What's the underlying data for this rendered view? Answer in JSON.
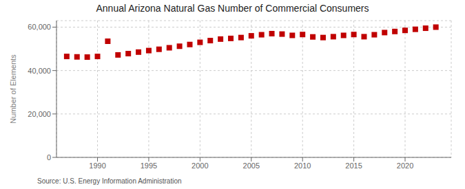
{
  "chart_data": {
    "type": "scatter",
    "title": "Annual Arizona Natural Gas Number of Commercial Consumers",
    "ylabel": "Number of Elements",
    "annotations": [
      "Source: U.S. Energy Information Administration"
    ],
    "x": [
      1987,
      1988,
      1989,
      1990,
      1991,
      1992,
      1993,
      1994,
      1995,
      1996,
      1997,
      1998,
      1999,
      2000,
      2001,
      2002,
      2003,
      2004,
      2005,
      2006,
      2007,
      2008,
      2009,
      2010,
      2011,
      2012,
      2013,
      2014,
      2015,
      2016,
      2017,
      2018,
      2019,
      2020,
      2021,
      2022,
      2023
    ],
    "values": [
      46500,
      46300,
      46200,
      46500,
      53500,
      47200,
      47800,
      48500,
      49200,
      49800,
      50500,
      51200,
      52000,
      53000,
      53800,
      54500,
      54800,
      55200,
      56000,
      56500,
      57000,
      56800,
      56200,
      56600,
      55500,
      55200,
      55600,
      56200,
      56600,
      55600,
      56500,
      57500,
      58000,
      58500,
      59000,
      59500,
      60000
    ],
    "color": "#c00000",
    "marker": "square",
    "xlim": [
      1986,
      2024.5
    ],
    "ylim": [
      0,
      63000
    ],
    "xticks": [
      1990,
      1995,
      2000,
      2005,
      2010,
      2015,
      2020
    ],
    "yticks": [
      0,
      {
        "value": 20000,
        "label": "20,000"
      },
      {
        "value": 40000,
        "label": "40,000"
      },
      {
        "value": 60000,
        "label": "60,000"
      }
    ],
    "grid": true
  }
}
